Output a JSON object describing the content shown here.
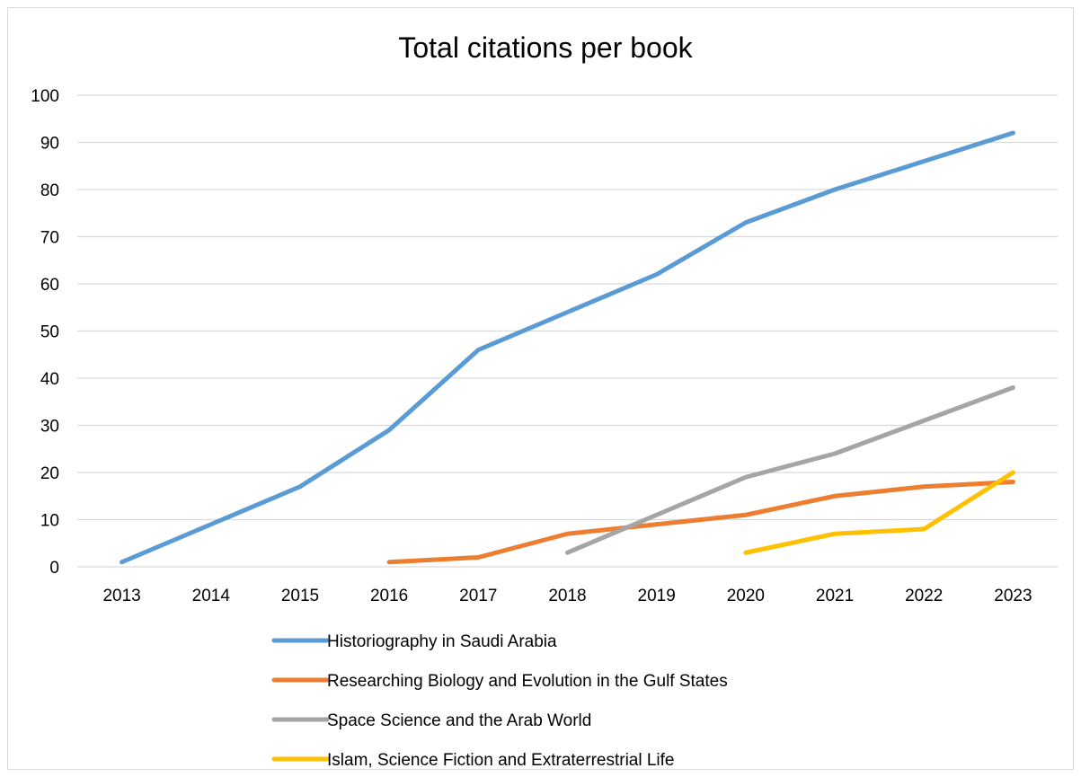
{
  "chart_data": {
    "type": "line",
    "title": "Total citations per book",
    "xlabel": "",
    "ylabel": "",
    "ylim": [
      0,
      100
    ],
    "y_ticks": [
      0,
      10,
      20,
      30,
      40,
      50,
      60,
      70,
      80,
      90,
      100
    ],
    "categories": [
      "2013",
      "2014",
      "2015",
      "2016",
      "2017",
      "2018",
      "2019",
      "2020",
      "2021",
      "2022",
      "2023"
    ],
    "grid": true,
    "legend_position": "bottom",
    "series": [
      {
        "name": "Historiography in Saudi Arabia",
        "color": "#5b9bd5",
        "values": [
          1,
          9,
          17,
          29,
          46,
          54,
          62,
          73,
          80,
          86,
          92
        ]
      },
      {
        "name": "Researching Biology and Evolution in the Gulf States",
        "color": "#ed7d31",
        "values": [
          null,
          null,
          null,
          1,
          2,
          7,
          9,
          11,
          15,
          17,
          18
        ]
      },
      {
        "name": "Space Science and the Arab World",
        "color": "#a5a5a5",
        "values": [
          null,
          null,
          null,
          null,
          null,
          3,
          11,
          19,
          24,
          31,
          38
        ]
      },
      {
        "name": "Islam, Science Fiction and Extraterrestrial Life",
        "color": "#ffc000",
        "values": [
          null,
          null,
          null,
          null,
          null,
          null,
          null,
          3,
          7,
          8,
          20
        ]
      }
    ]
  }
}
